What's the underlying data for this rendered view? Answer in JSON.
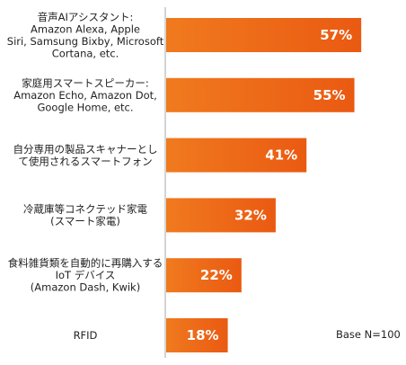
{
  "chart_data": {
    "type": "bar",
    "orientation": "horizontal",
    "categories": [
      [
        "音声AIアシスタント:",
        "Amazon Alexa, Apple",
        "Siri, Samsung Bixby, Microsoft",
        "Cortana, etc."
      ],
      [
        "家庭用スマートスピーカー:",
        "Amazon Echo, Amazon Dot,",
        "Google Home, etc."
      ],
      [
        "自分専用の製品スキャナーとし",
        "て使用されるスマートフォン"
      ],
      [
        "冷蔵庫等コネクテッド家電",
        "(スマート家電)"
      ],
      [
        "食料雑貨類を自動的に再購入する",
        "IoT デバイス",
        "(Amazon Dash, Kwik)"
      ],
      [
        "RFID"
      ]
    ],
    "values": [
      57,
      55,
      41,
      32,
      22,
      18
    ],
    "value_labels": [
      "57%",
      "55%",
      "41%",
      "32%",
      "22%",
      "18%"
    ],
    "unit": "%",
    "xlim": [
      0,
      60
    ],
    "grid": false,
    "note": "Base N=100",
    "colors": {
      "bar_start": "#f07a1e",
      "bar_end": "#ea5a12",
      "axis": "#aaaaaa"
    }
  }
}
